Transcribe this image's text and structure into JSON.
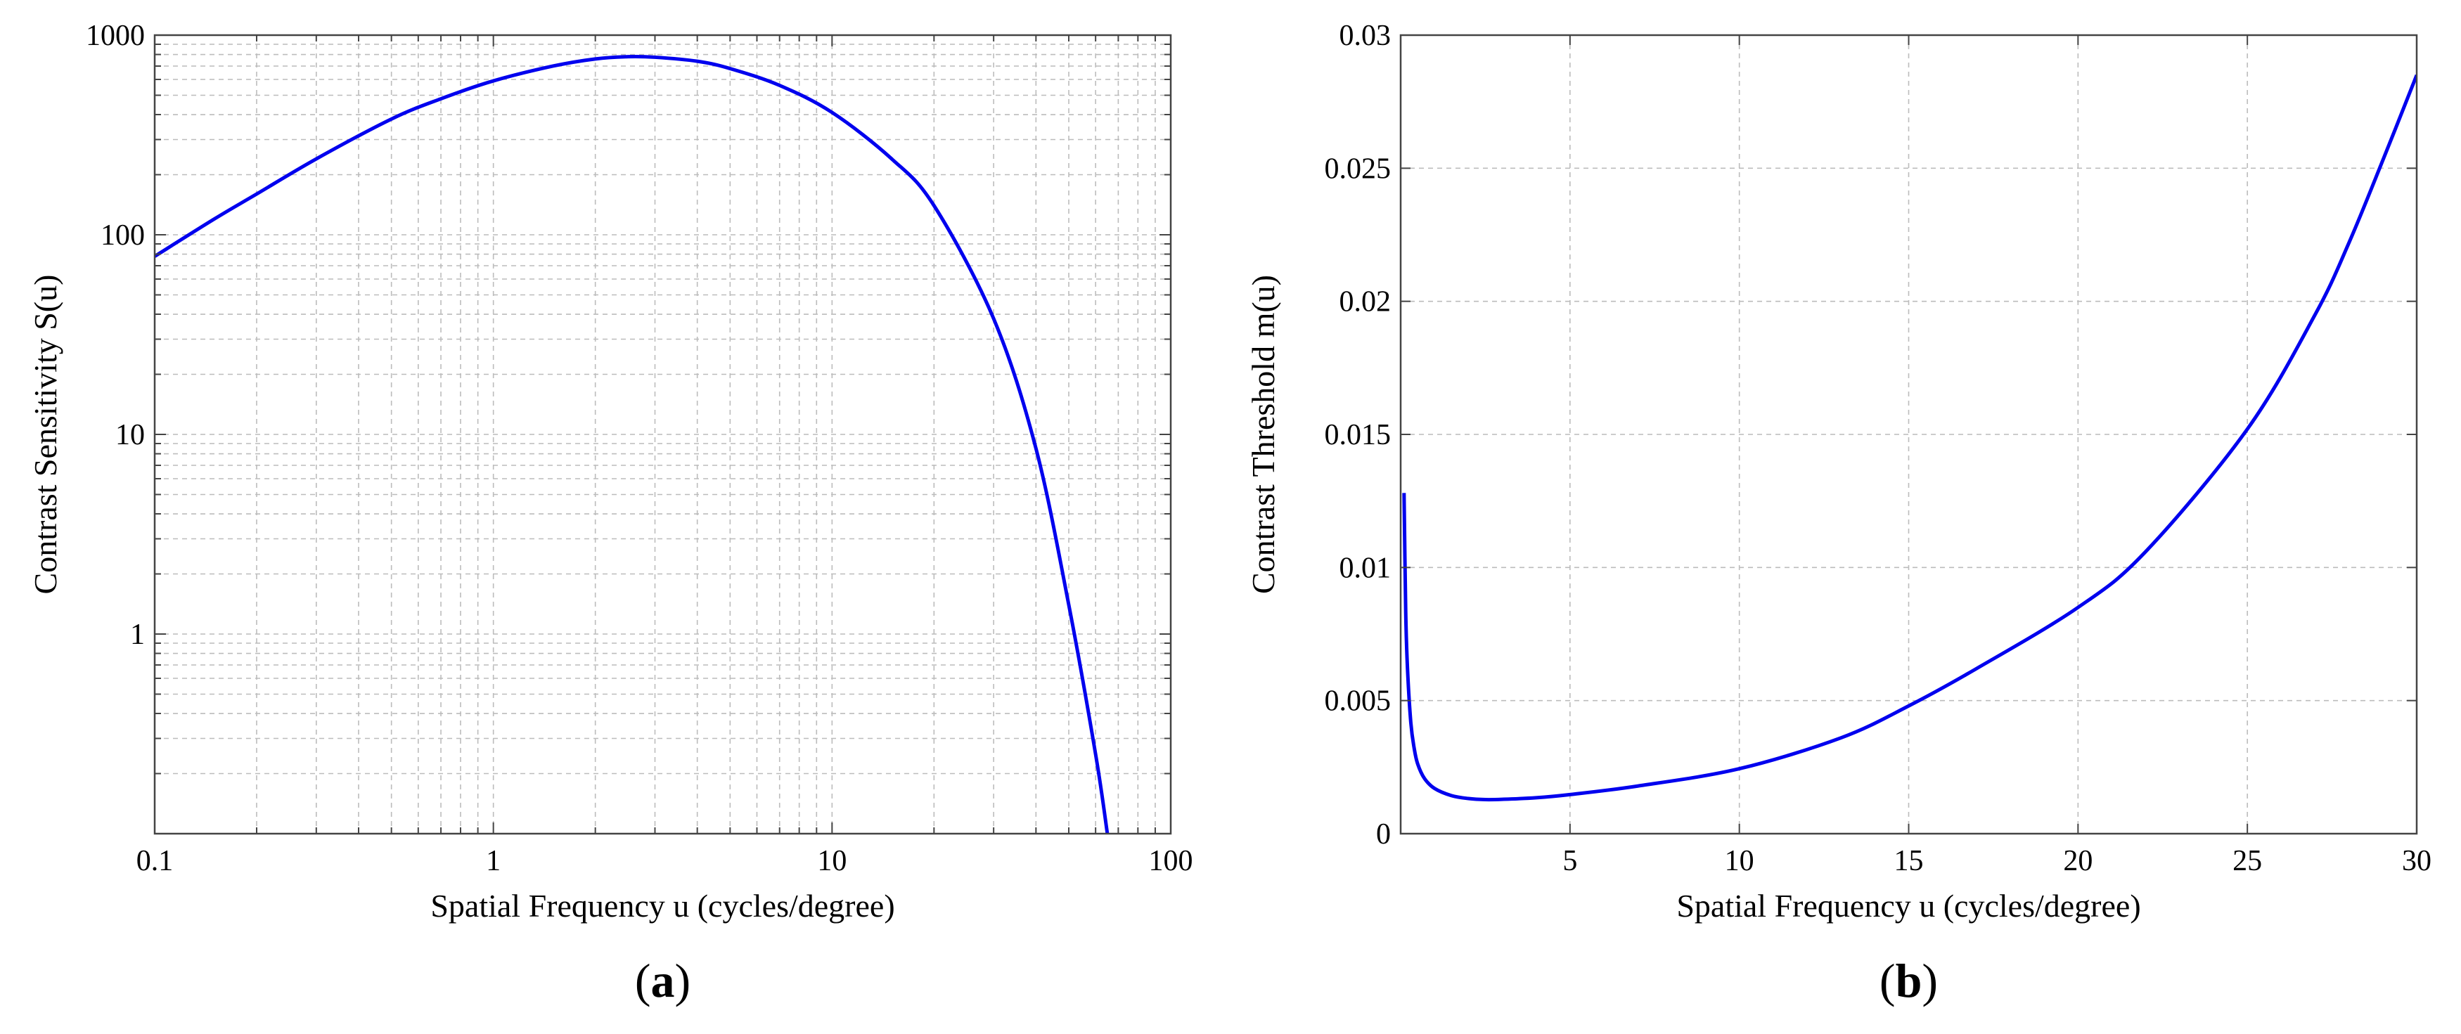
{
  "chart_data": [
    {
      "type": "line",
      "panel_label": {
        "open": "(",
        "letter": "a",
        "close": ")"
      },
      "xscale": "log",
      "yscale": "log",
      "xlabel": "Spatial Frequency u (cycles/degree)",
      "ylabel": "Contrast Sensitivity S(u)",
      "xlim": [
        0.1,
        100
      ],
      "ylim": [
        0.1,
        1000
      ],
      "xticks": [
        0.1,
        1,
        10,
        100
      ],
      "xtick_labels": [
        "0.1",
        "1",
        "10",
        "100"
      ],
      "yticks": [
        1,
        10,
        100,
        1000
      ],
      "ytick_labels": [
        "1",
        "10",
        "100",
        "1000"
      ],
      "grid": true,
      "series": [
        {
          "name": "S(u)",
          "color": "#0000ee",
          "x": [
            0.1,
            0.15,
            0.2,
            0.3,
            0.5,
            0.7,
            1,
            1.5,
            2,
            2.5,
            3,
            4,
            5,
            7,
            10,
            15,
            20,
            30,
            40,
            50,
            60,
            65
          ],
          "y": [
            78,
            120,
            160,
            240,
            380,
            480,
            590,
            700,
            760,
            780,
            775,
            740,
            680,
            560,
            410,
            240,
            140,
            38,
            8.5,
            1.4,
            0.25,
            0.1
          ]
        }
      ]
    },
    {
      "type": "line",
      "panel_label": {
        "open": "(",
        "letter": "b",
        "close": ")"
      },
      "xscale": "linear",
      "yscale": "linear",
      "xlabel": "Spatial Frequency u (cycles/degree)",
      "ylabel": "Contrast Threshold m(u)",
      "xlim": [
        0,
        30
      ],
      "ylim": [
        0,
        0.03
      ],
      "xticks": [
        5,
        10,
        15,
        20,
        25,
        30
      ],
      "xtick_labels": [
        "5",
        "10",
        "15",
        "20",
        "25",
        "30"
      ],
      "yticks": [
        0,
        0.005,
        0.01,
        0.015,
        0.02,
        0.025,
        0.03
      ],
      "ytick_labels": [
        "0",
        "0.005",
        "0.01",
        "0.015",
        "0.02",
        "0.025",
        "0.03"
      ],
      "grid": true,
      "series": [
        {
          "name": "m(u)",
          "color": "#0000ee",
          "x": [
            0.1,
            0.15,
            0.2,
            0.3,
            0.4,
            0.5,
            0.7,
            1,
            1.5,
            2,
            2.5,
            3,
            4,
            5,
            7,
            10,
            13,
            15,
            17,
            20,
            22,
            25,
            27,
            28,
            29,
            30
          ],
          "y": [
            0.0128,
            0.0083,
            0.00625,
            0.00417,
            0.0032,
            0.00263,
            0.00208,
            0.0017,
            0.00143,
            0.00132,
            0.00128,
            0.00129,
            0.00135,
            0.00147,
            0.00179,
            0.00244,
            0.0036,
            0.0048,
            0.0062,
            0.0085,
            0.0106,
            0.0152,
            0.0195,
            0.0222,
            0.0253,
            0.0285
          ]
        }
      ]
    }
  ]
}
